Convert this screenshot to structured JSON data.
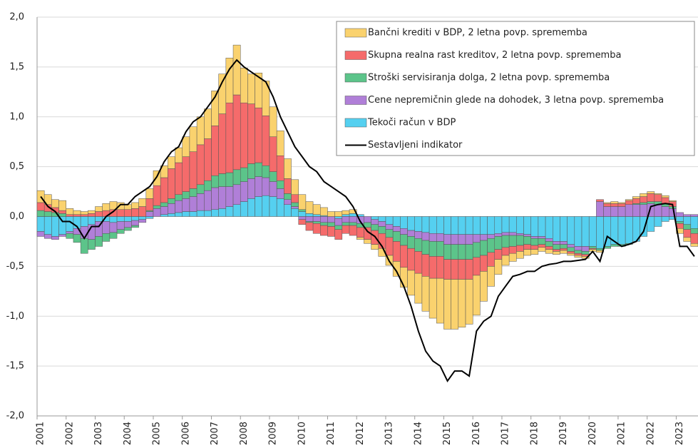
{
  "chart_data": {
    "type": "bar",
    "categories": [
      "2001",
      null,
      null,
      null,
      "2002",
      null,
      null,
      null,
      "2003",
      null,
      null,
      null,
      "2004",
      null,
      null,
      null,
      "2005",
      null,
      null,
      null,
      "2006",
      null,
      null,
      null,
      "2007",
      null,
      null,
      null,
      "2008",
      null,
      null,
      null,
      "2009",
      null,
      null,
      null,
      "2010",
      null,
      null,
      null,
      "2011",
      null,
      null,
      null,
      "2012",
      null,
      null,
      null,
      "2013",
      null,
      null,
      null,
      "2014",
      null,
      null,
      null,
      "2015",
      null,
      null,
      null,
      "2016",
      null,
      null,
      null,
      "2017",
      null,
      null,
      null,
      "2018",
      null,
      null,
      null,
      "2019",
      null,
      null,
      null,
      "2020",
      null,
      null,
      null,
      "2021",
      null,
      null,
      null,
      "2022",
      null,
      null,
      null,
      "2023",
      null,
      null
    ],
    "series": [
      {
        "name": "Bančni krediti v BDP, 2 letna povp. sprememba",
        "color": "#fad26e",
        "values": [
          0.12,
          0.1,
          0.08,
          0.1,
          0.06,
          0.04,
          0.03,
          0.03,
          0.05,
          0.07,
          0.08,
          0.07,
          0.05,
          0.06,
          0.08,
          0.1,
          0.15,
          0.12,
          0.12,
          0.15,
          0.2,
          0.25,
          0.28,
          0.3,
          0.35,
          0.4,
          0.45,
          0.5,
          0.35,
          0.3,
          0.35,
          0.35,
          0.3,
          0.25,
          0.2,
          0.15,
          0.15,
          0.12,
          0.1,
          0.08,
          0.05,
          0.05,
          0.04,
          0.04,
          -0.02,
          -0.04,
          -0.05,
          -0.08,
          -0.1,
          -0.15,
          -0.2,
          -0.25,
          -0.3,
          -0.35,
          -0.4,
          -0.45,
          -0.5,
          -0.5,
          -0.48,
          -0.45,
          -0.4,
          -0.3,
          -0.2,
          -0.15,
          -0.1,
          -0.08,
          -0.07,
          -0.06,
          -0.05,
          -0.04,
          -0.04,
          -0.03,
          -0.03,
          -0.02,
          -0.02,
          -0.02,
          -0.02,
          -0.02,
          0.01,
          0.02,
          0.01,
          0.01,
          0.02,
          0.03,
          0.02,
          0.01,
          0.02,
          0.01,
          -0.05,
          -0.04,
          -0.03
        ]
      },
      {
        "name": "Skupna realna rast kreditov, 2 letna povp. sprememba",
        "color": "#f56b6b",
        "values": [
          0.08,
          0.07,
          0.05,
          0.03,
          0.02,
          0.02,
          0.02,
          0.03,
          0.05,
          0.06,
          0.07,
          0.07,
          0.07,
          0.08,
          0.1,
          0.12,
          0.2,
          0.25,
          0.3,
          0.32,
          0.35,
          0.37,
          0.4,
          0.42,
          0.5,
          0.6,
          0.7,
          0.75,
          0.65,
          0.6,
          0.55,
          0.5,
          0.35,
          0.25,
          0.15,
          0.08,
          -0.05,
          -0.08,
          -0.1,
          -0.1,
          -0.1,
          -0.1,
          -0.08,
          -0.1,
          -0.1,
          -0.12,
          -0.14,
          -0.15,
          -0.18,
          -0.2,
          -0.22,
          -0.22,
          -0.22,
          -0.22,
          -0.22,
          -0.22,
          -0.2,
          -0.2,
          -0.2,
          -0.2,
          -0.18,
          -0.16,
          -0.14,
          -0.1,
          -0.08,
          -0.07,
          -0.06,
          -0.05,
          -0.04,
          -0.03,
          -0.03,
          -0.02,
          -0.02,
          -0.02,
          -0.02,
          -0.02,
          -0.01,
          0.02,
          0.03,
          0.03,
          0.03,
          0.04,
          0.05,
          0.06,
          0.08,
          0.07,
          0.06,
          0.05,
          -0.05,
          -0.08,
          -0.1
        ]
      },
      {
        "name": "Stroški servisiranja dolga, 2 letna povp. sprememba",
        "color": "#5cc48a",
        "values": [
          0.06,
          0.05,
          0.04,
          0.03,
          -0.05,
          -0.08,
          -0.15,
          -0.1,
          -0.1,
          -0.08,
          -0.06,
          -0.04,
          -0.03,
          -0.02,
          0.0,
          0.01,
          0.03,
          0.04,
          0.05,
          0.06,
          0.07,
          0.08,
          0.09,
          0.1,
          0.12,
          0.13,
          0.14,
          0.15,
          0.14,
          0.15,
          0.14,
          0.12,
          0.1,
          0.08,
          0.06,
          0.04,
          0.02,
          -0.01,
          -0.02,
          -0.03,
          -0.04,
          -0.04,
          -0.03,
          -0.03,
          -0.04,
          -0.05,
          -0.06,
          -0.07,
          -0.08,
          -0.1,
          -0.11,
          -0.12,
          -0.13,
          -0.14,
          -0.15,
          -0.15,
          -0.15,
          -0.15,
          -0.15,
          -0.15,
          -0.15,
          -0.15,
          -0.14,
          -0.13,
          -0.12,
          -0.11,
          -0.1,
          -0.08,
          -0.07,
          -0.06,
          -0.05,
          -0.05,
          -0.04,
          -0.04,
          -0.03,
          -0.03,
          -0.02,
          -0.02,
          -0.02,
          -0.02,
          -0.02,
          -0.01,
          0.01,
          0.02,
          0.02,
          0.03,
          0.03,
          0.02,
          -0.02,
          -0.05,
          -0.05
        ]
      },
      {
        "name": "Cene nepremičnin glede na dohodek, 3 letna povp. sprememba",
        "color": "#b07fd8",
        "values": [
          -0.05,
          -0.04,
          -0.03,
          -0.02,
          -0.02,
          -0.06,
          -0.12,
          -0.15,
          -0.15,
          -0.12,
          -0.1,
          -0.08,
          -0.06,
          -0.05,
          -0.03,
          0.05,
          0.08,
          0.08,
          0.1,
          0.12,
          0.13,
          0.15,
          0.17,
          0.2,
          0.22,
          0.22,
          0.2,
          0.2,
          0.2,
          0.2,
          0.2,
          0.18,
          0.15,
          0.1,
          0.05,
          0.02,
          -0.03,
          -0.05,
          -0.05,
          -0.06,
          -0.06,
          -0.07,
          -0.06,
          -0.06,
          -0.07,
          -0.06,
          -0.05,
          -0.05,
          -0.05,
          -0.05,
          -0.06,
          -0.06,
          -0.07,
          -0.08,
          -0.08,
          -0.08,
          -0.1,
          -0.1,
          -0.1,
          -0.1,
          -0.08,
          -0.06,
          -0.04,
          -0.03,
          -0.03,
          -0.03,
          -0.02,
          -0.02,
          -0.02,
          -0.02,
          -0.03,
          -0.03,
          -0.03,
          -0.03,
          -0.04,
          -0.05,
          0.0,
          0.15,
          0.1,
          0.1,
          0.1,
          0.12,
          0.12,
          0.12,
          0.13,
          0.12,
          0.1,
          0.08,
          0.04,
          0.02,
          0.02
        ]
      },
      {
        "name": "Tekoči račun v BDP",
        "color": "#55d0f0",
        "values": [
          -0.15,
          -0.18,
          -0.2,
          -0.18,
          -0.15,
          -0.12,
          -0.1,
          -0.08,
          -0.05,
          -0.05,
          -0.06,
          -0.05,
          -0.05,
          -0.04,
          -0.03,
          -0.02,
          0.0,
          0.02,
          0.03,
          0.04,
          0.05,
          0.05,
          0.06,
          0.06,
          0.07,
          0.08,
          0.1,
          0.12,
          0.15,
          0.18,
          0.2,
          0.21,
          0.2,
          0.18,
          0.12,
          0.08,
          0.05,
          0.03,
          0.02,
          0.01,
          0.0,
          -0.02,
          0.02,
          0.03,
          0.02,
          0.0,
          -0.03,
          -0.05,
          -0.08,
          -0.1,
          -0.12,
          -0.14,
          -0.15,
          -0.16,
          -0.17,
          -0.17,
          -0.18,
          -0.18,
          -0.18,
          -0.18,
          -0.18,
          -0.18,
          -0.18,
          -0.17,
          -0.16,
          -0.16,
          -0.17,
          -0.18,
          -0.2,
          -0.2,
          -0.22,
          -0.25,
          -0.25,
          -0.28,
          -0.3,
          -0.3,
          -0.3,
          -0.32,
          -0.3,
          -0.28,
          -0.28,
          -0.27,
          -0.25,
          -0.2,
          -0.15,
          -0.1,
          -0.05,
          -0.03,
          -0.05,
          -0.08,
          -0.12
        ]
      },
      {
        "name": "Sestavljeni indikator",
        "type": "line",
        "color": "#000000",
        "values": [
          0.2,
          0.1,
          0.05,
          -0.05,
          -0.05,
          -0.1,
          -0.22,
          -0.1,
          -0.1,
          0.0,
          0.05,
          0.12,
          0.12,
          0.2,
          0.25,
          0.3,
          0.4,
          0.55,
          0.65,
          0.7,
          0.85,
          0.95,
          1.0,
          1.1,
          1.2,
          1.35,
          1.48,
          1.57,
          1.5,
          1.45,
          1.4,
          1.35,
          1.2,
          1.0,
          0.85,
          0.7,
          0.6,
          0.5,
          0.45,
          0.35,
          0.3,
          0.25,
          0.2,
          0.1,
          -0.05,
          -0.15,
          -0.2,
          -0.3,
          -0.45,
          -0.55,
          -0.7,
          -0.9,
          -1.15,
          -1.35,
          -1.45,
          -1.5,
          -1.65,
          -1.55,
          -1.55,
          -1.6,
          -1.15,
          -1.05,
          -1.0,
          -0.8,
          -0.7,
          -0.6,
          -0.58,
          -0.55,
          -0.55,
          -0.5,
          -0.48,
          -0.47,
          -0.45,
          -0.45,
          -0.44,
          -0.43,
          -0.35,
          -0.45,
          -0.2,
          -0.25,
          -0.3,
          -0.28,
          -0.25,
          -0.15,
          0.1,
          0.12,
          0.13,
          0.12,
          -0.3,
          -0.3,
          -0.4
        ]
      }
    ],
    "ylim": [
      -2,
      2
    ],
    "yticks": [
      {
        "value": -2,
        "label": "-2,0"
      },
      {
        "value": -1.5,
        "label": "-1,5"
      },
      {
        "value": -1,
        "label": "-1,0"
      },
      {
        "value": -0.5,
        "label": "-0,5"
      },
      {
        "value": 0,
        "label": "0,0"
      },
      {
        "value": 0.5,
        "label": "0,5"
      },
      {
        "value": 1,
        "label": "1,0"
      },
      {
        "value": 1.5,
        "label": "1,5"
      },
      {
        "value": 2,
        "label": "2,0"
      }
    ],
    "grid": true,
    "legend": "top-right"
  }
}
